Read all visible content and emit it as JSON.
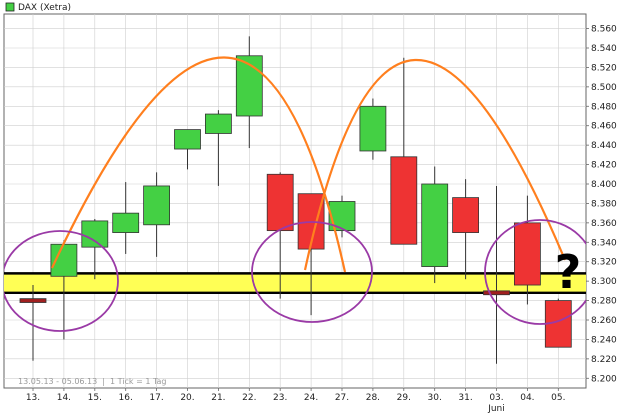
{
  "legend": {
    "label": "DAX (Xetra)",
    "color": "#44d044"
  },
  "footer": {
    "range": "13.05.13 - 05.06.13",
    "tick": "1 Tick = 1 Tag"
  },
  "annotation": {
    "text": "?"
  },
  "chart_data": {
    "type": "candlestick",
    "x": [
      "13.",
      "14.",
      "15.",
      "16.",
      "17.",
      "20.",
      "21.",
      "22.",
      "23.",
      "24.",
      "27.",
      "28.",
      "29.",
      "30.",
      "31.",
      "03.",
      "04.",
      "05."
    ],
    "x_sublabels": {
      "03.": "Juni"
    },
    "candles": [
      {
        "open": 8282,
        "high": 8296,
        "low": 8218,
        "close": 8278
      },
      {
        "open": 8305,
        "high": 8342,
        "low": 8240,
        "close": 8338
      },
      {
        "open": 8335,
        "high": 8364,
        "low": 8302,
        "close": 8362
      },
      {
        "open": 8350,
        "high": 8402,
        "low": 8328,
        "close": 8370
      },
      {
        "open": 8358,
        "high": 8412,
        "low": 8325,
        "close": 8398
      },
      {
        "open": 8436,
        "high": 8456,
        "low": 8415,
        "close": 8456
      },
      {
        "open": 8452,
        "high": 8476,
        "low": 8398,
        "close": 8472
      },
      {
        "open": 8470,
        "high": 8552,
        "low": 8437,
        "close": 8532
      },
      {
        "open": 8410,
        "high": 8412,
        "low": 8282,
        "close": 8352
      },
      {
        "open": 8390,
        "high": 8390,
        "low": 8265,
        "close": 8333
      },
      {
        "open": 8352,
        "high": 8388,
        "low": 8345,
        "close": 8382
      },
      {
        "open": 8434,
        "high": 8488,
        "low": 8425,
        "close": 8480
      },
      {
        "open": 8428,
        "high": 8530,
        "low": 8338,
        "close": 8338
      },
      {
        "open": 8315,
        "high": 8418,
        "low": 8298,
        "close": 8400
      },
      {
        "open": 8386,
        "high": 8405,
        "low": 8302,
        "close": 8350
      },
      {
        "open": 8286,
        "high": 8398,
        "low": 8215,
        "close": 8290
      },
      {
        "open": 8360,
        "high": 8388,
        "low": 8276,
        "close": 8296
      },
      {
        "open": 8280,
        "high": 8282,
        "low": 8232,
        "close": 8232
      }
    ],
    "colors": {
      "up": "#44d044",
      "down": "#ee3333",
      "doji": "#a02020"
    },
    "y_ticks": [
      8200,
      8220,
      8240,
      8260,
      8280,
      8300,
      8320,
      8340,
      8360,
      8380,
      8400,
      8420,
      8440,
      8460,
      8480,
      8500,
      8520,
      8540,
      8560
    ],
    "ylim": [
      8190,
      8575
    ],
    "support_band": {
      "from": 8288,
      "to": 8308,
      "color": "#ffff55"
    },
    "grid": true,
    "legend_position": "top-left"
  }
}
